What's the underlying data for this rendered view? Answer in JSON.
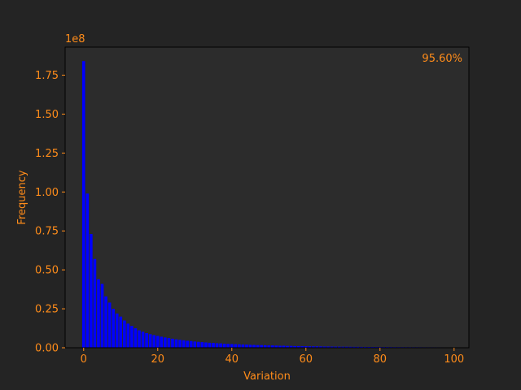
{
  "colors": {
    "figure_bg": "#242424",
    "axes_bg": "#2c2c2c",
    "text": "#ff8c1a",
    "bars": "#0000ff",
    "spine": "#000000"
  },
  "chart_data": {
    "type": "bar",
    "xlabel": "Variation",
    "ylabel": "Frequency",
    "offset_text": "1e8",
    "annotation": "95.60%",
    "annotation_placement": "top-right",
    "grid": false,
    "legend": false,
    "xlim": [
      -5,
      104
    ],
    "ylim": [
      0,
      1.93
    ],
    "y_scale_note": "values are in units of 1e8",
    "xticks": [
      0,
      20,
      40,
      60,
      80,
      100
    ],
    "xtick_labels": [
      "0",
      "20",
      "40",
      "60",
      "80",
      "100"
    ],
    "yticks": [
      0,
      0.25,
      0.5,
      0.75,
      1.0,
      1.25,
      1.5,
      1.75
    ],
    "ytick_labels": [
      "0.00",
      "0.25",
      "0.50",
      "0.75",
      "1.00",
      "1.25",
      "1.50",
      "1.75"
    ],
    "x": [
      0,
      1,
      2,
      3,
      4,
      5,
      6,
      7,
      8,
      9,
      10,
      11,
      12,
      13,
      14,
      15,
      16,
      17,
      18,
      19,
      20,
      21,
      22,
      23,
      24,
      25,
      26,
      27,
      28,
      29,
      30,
      31,
      32,
      33,
      34,
      35,
      36,
      37,
      38,
      39,
      40,
      41,
      42,
      43,
      44,
      45,
      46,
      47,
      48,
      49,
      50,
      51,
      52,
      53,
      54,
      55,
      56,
      57,
      58,
      59,
      60,
      61,
      62,
      63,
      64,
      65,
      66,
      67,
      68,
      69,
      70,
      71,
      72,
      73,
      74,
      75,
      76,
      77,
      78,
      79,
      80,
      81,
      82,
      83,
      84,
      85,
      86,
      87,
      88,
      89,
      90,
      91,
      92,
      93,
      94,
      95,
      96,
      97,
      98,
      99
    ],
    "values": [
      1.84,
      0.99,
      0.73,
      0.57,
      0.44,
      0.41,
      0.33,
      0.29,
      0.25,
      0.22,
      0.2,
      0.175,
      0.155,
      0.14,
      0.125,
      0.112,
      0.103,
      0.094,
      0.087,
      0.081,
      0.076,
      0.071,
      0.066,
      0.062,
      0.058,
      0.054,
      0.051,
      0.048,
      0.045,
      0.043,
      0.04,
      0.038,
      0.036,
      0.034,
      0.032,
      0.031,
      0.029,
      0.028,
      0.026,
      0.025,
      0.024,
      0.023,
      0.022,
      0.021,
      0.02,
      0.019,
      0.018,
      0.017,
      0.017,
      0.016,
      0.015,
      0.015,
      0.014,
      0.013,
      0.013,
      0.012,
      0.012,
      0.011,
      0.011,
      0.01,
      0.01,
      0.0095,
      0.009,
      0.0088,
      0.0085,
      0.008,
      0.0078,
      0.0075,
      0.0072,
      0.007,
      0.0067,
      0.0065,
      0.0062,
      0.006,
      0.0058,
      0.0056,
      0.0054,
      0.0052,
      0.005,
      0.0048,
      0.0047,
      0.0045,
      0.0044,
      0.0042,
      0.0041,
      0.004,
      0.0039,
      0.0037,
      0.0036,
      0.0035,
      0.0034,
      0.0033,
      0.0032,
      0.0031,
      0.003,
      0.0029,
      0.0028,
      0.0027,
      0.0026,
      0.0025
    ]
  }
}
